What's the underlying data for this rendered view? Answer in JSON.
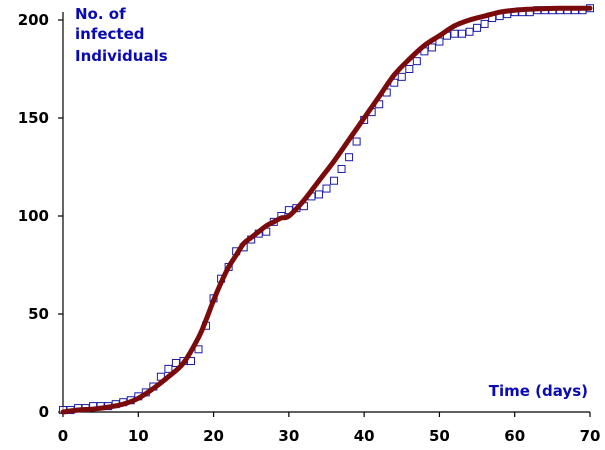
{
  "chart_data": {
    "type": "scatter",
    "ylabel_lines": [
      "No. of",
      "infected",
      "Individuals"
    ],
    "xlabel": "Time (days)",
    "xlim": [
      0,
      70
    ],
    "ylim": [
      0,
      200
    ],
    "x_ticks": [
      0,
      10,
      20,
      30,
      40,
      50,
      60,
      70
    ],
    "y_ticks": [
      0,
      50,
      100,
      150,
      200
    ],
    "colors": {
      "observed": "#1a1aa6",
      "model": "#7b0b0b",
      "text": "#0a0ab4"
    },
    "series": [
      {
        "kind": "markers",
        "marker": "open-square",
        "x": [
          0,
          1,
          2,
          3,
          4,
          5,
          6,
          7,
          8,
          9,
          10,
          11,
          12,
          13,
          14,
          15,
          16,
          17,
          18,
          19,
          20,
          21,
          22,
          23,
          24,
          25,
          26,
          27,
          28,
          29,
          30,
          31,
          32,
          33,
          34,
          35,
          36,
          37,
          38,
          39,
          40,
          41,
          42,
          43,
          44,
          45,
          46,
          47,
          48,
          49,
          50,
          51,
          52,
          53,
          54,
          55,
          56,
          57,
          58,
          59,
          60,
          61,
          62,
          63,
          64,
          65,
          66,
          67,
          68,
          69,
          70
        ],
        "y": [
          1,
          1,
          2,
          2,
          3,
          3,
          3,
          4,
          5,
          6,
          8,
          10,
          13,
          18,
          22,
          25,
          26,
          26,
          32,
          44,
          58,
          68,
          74,
          82,
          84,
          88,
          91,
          92,
          97,
          100,
          103,
          104,
          105,
          110,
          111,
          114,
          118,
          124,
          130,
          138,
          149,
          153,
          157,
          163,
          168,
          171,
          175,
          179,
          184,
          186,
          189,
          192,
          193,
          193,
          194,
          196,
          198,
          201,
          202,
          203,
          204,
          204,
          204,
          205,
          205,
          205,
          205,
          205,
          205,
          205,
          206
        ]
      },
      {
        "kind": "line",
        "x": [
          0,
          2,
          4,
          6,
          8,
          10,
          12,
          14,
          16,
          18,
          19,
          20,
          21,
          22,
          23,
          24,
          25,
          26,
          27,
          28,
          29,
          30,
          32,
          34,
          36,
          38,
          40,
          42,
          44,
          46,
          48,
          50,
          52,
          54,
          56,
          58,
          60,
          62,
          64,
          66,
          68,
          70
        ],
        "y": [
          0,
          1,
          1.5,
          2.5,
          4,
          7,
          12,
          18,
          25,
          38,
          47,
          57,
          66,
          74,
          80,
          86,
          89,
          92,
          95,
          97,
          99,
          100,
          108,
          118,
          128,
          139,
          150,
          161,
          172,
          180,
          187,
          192,
          197,
          200,
          202,
          204,
          205,
          205.5,
          205.8,
          206,
          206,
          206
        ]
      }
    ]
  }
}
